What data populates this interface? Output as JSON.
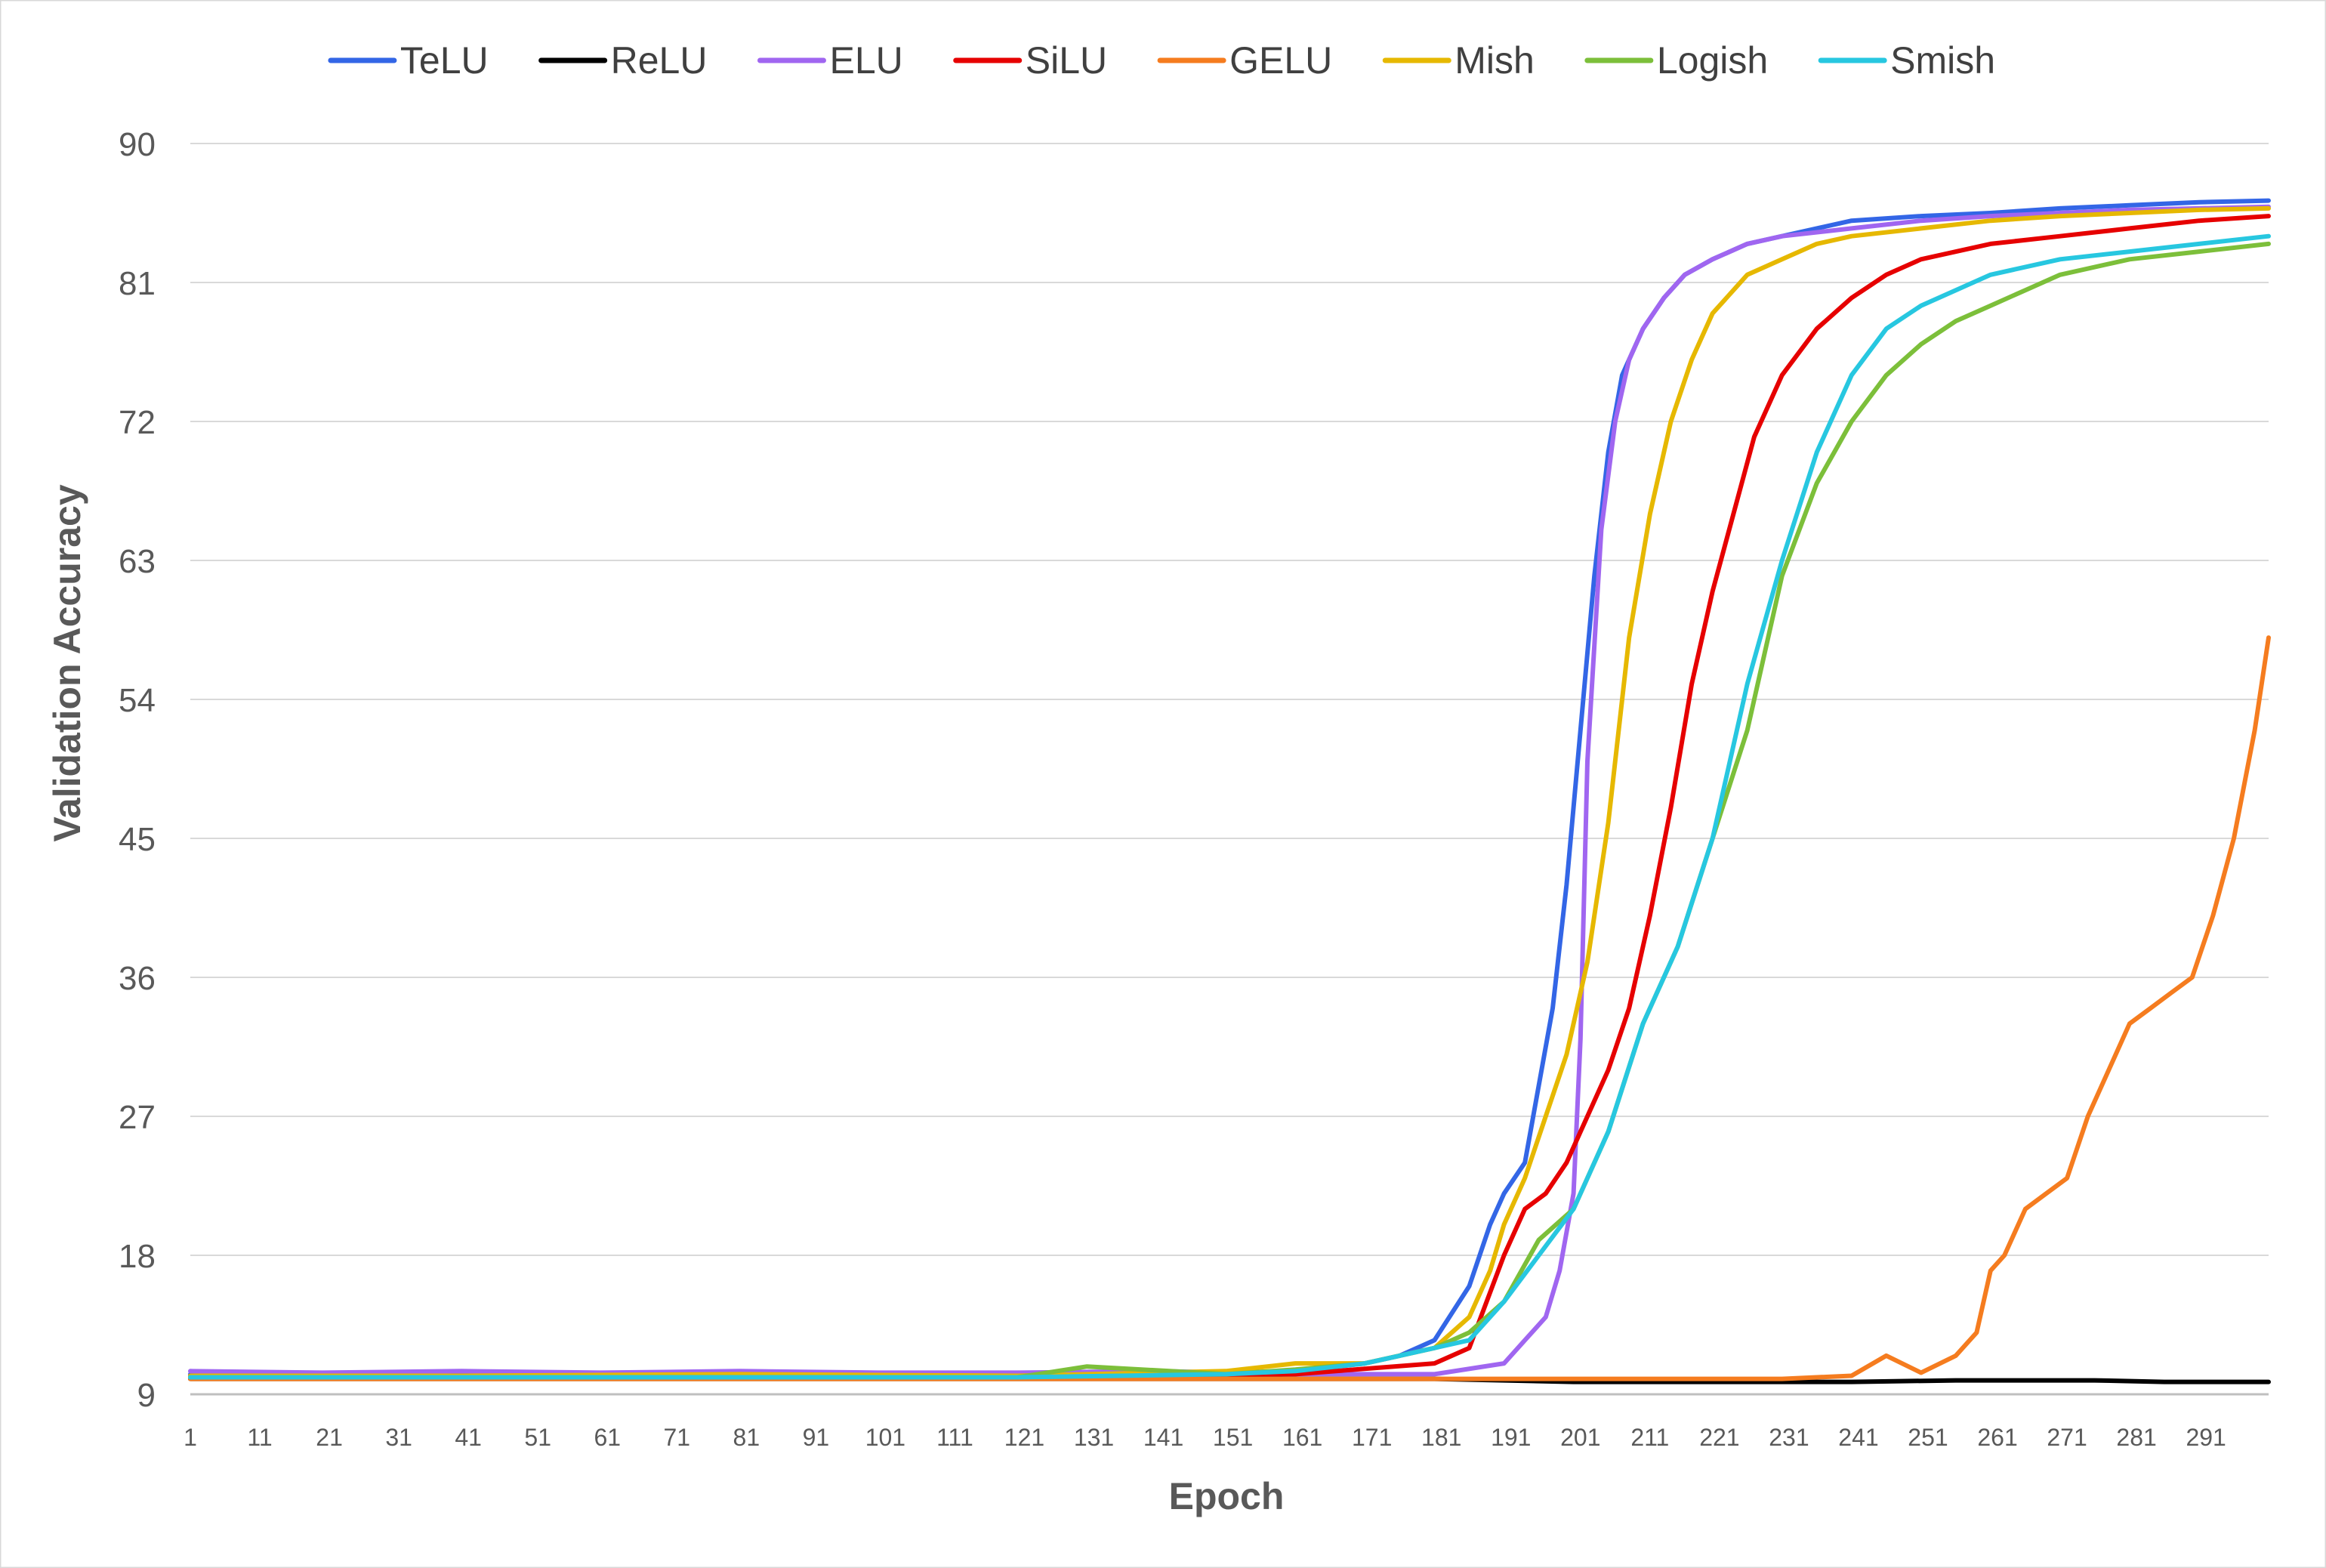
{
  "chart_data": {
    "type": "line",
    "xlabel": "Epoch",
    "ylabel": "Validation Accuracy",
    "xlim": [
      1,
      300
    ],
    "ylim": [
      9,
      90
    ],
    "y_ticks": [
      9,
      18,
      27,
      36,
      45,
      54,
      63,
      72,
      81,
      90
    ],
    "x_ticks": [
      "1",
      "11",
      "21",
      "31",
      "41",
      "51",
      "61",
      "71",
      "81",
      "91",
      "101",
      "111",
      "121",
      "131",
      "141",
      "151",
      "161",
      "171",
      "181",
      "191",
      "201",
      "211",
      "221",
      "231",
      "241",
      "251",
      "261",
      "271",
      "281",
      "291"
    ],
    "grid": "horizontal",
    "legend_position": "top",
    "series": [
      {
        "name": "TeLU",
        "color": "#3366e6",
        "x": [
          1,
          20,
          40,
          60,
          80,
          100,
          120,
          140,
          160,
          170,
          175,
          180,
          185,
          188,
          190,
          193,
          195,
          197,
          199,
          201,
          203,
          205,
          207,
          210,
          213,
          216,
          220,
          225,
          230,
          235,
          240,
          250,
          260,
          270,
          280,
          290,
          300
        ],
        "y": [
          10.3,
          10.2,
          10.3,
          10.2,
          10.2,
          10.3,
          10.2,
          10.3,
          10.5,
          11,
          11.5,
          12.5,
          16,
          20,
          22,
          24,
          29,
          34,
          42,
          52,
          62,
          70,
          75,
          78,
          80,
          81.5,
          82.5,
          83.5,
          84,
          84.5,
          85,
          85.3,
          85.5,
          85.8,
          86,
          86.2,
          86.3
        ]
      },
      {
        "name": "ReLU",
        "color": "#000000",
        "x": [
          1,
          50,
          100,
          150,
          180,
          200,
          220,
          240,
          255,
          265,
          275,
          285,
          295,
          300
        ],
        "y": [
          10,
          10,
          10,
          10,
          10,
          9.8,
          9.8,
          9.8,
          9.9,
          9.9,
          9.9,
          9.8,
          9.8,
          9.8
        ]
      },
      {
        "name": "ELU",
        "color": "#a066f0",
        "x": [
          1,
          20,
          40,
          60,
          80,
          100,
          120,
          140,
          160,
          180,
          190,
          193,
          196,
          198,
          200,
          201,
          202,
          204,
          206,
          208,
          210,
          213,
          216,
          220,
          225,
          230,
          240,
          250,
          260,
          270,
          280,
          290,
          300
        ],
        "y": [
          10.5,
          10.4,
          10.5,
          10.4,
          10.5,
          10.4,
          10.4,
          10.5,
          10.3,
          10.3,
          11,
          12.5,
          14,
          17,
          22,
          32,
          50,
          65,
          72,
          76,
          78,
          80,
          81.5,
          82.5,
          83.5,
          84,
          84.5,
          85,
          85.3,
          85.5,
          85.7,
          85.8,
          85.9
        ]
      },
      {
        "name": "SiLU",
        "color": "#e60000",
        "x": [
          1,
          40,
          80,
          120,
          160,
          180,
          185,
          190,
          193,
          196,
          199,
          202,
          205,
          208,
          211,
          214,
          217,
          220,
          223,
          226,
          230,
          235,
          240,
          245,
          250,
          260,
          270,
          280,
          290,
          300
        ],
        "y": [
          10.2,
          10.2,
          10.2,
          10.2,
          10.3,
          11,
          12,
          18,
          21,
          22,
          24,
          27,
          30,
          34,
          40,
          47,
          55,
          61,
          66,
          71,
          75,
          78,
          80,
          81.5,
          82.5,
          83.5,
          84,
          84.5,
          85,
          85.3
        ]
      },
      {
        "name": "GELU",
        "color": "#f57c1f",
        "x": [
          1,
          50,
          100,
          150,
          200,
          230,
          240,
          245,
          250,
          255,
          258,
          260,
          262,
          265,
          268,
          271,
          274,
          277,
          280,
          283,
          286,
          289,
          292,
          295,
          298,
          300
        ],
        "y": [
          10,
          10,
          10,
          10,
          10,
          10,
          10.2,
          11.5,
          10.4,
          11.5,
          13,
          17,
          18,
          21,
          22,
          23,
          27,
          30,
          33,
          34,
          35,
          36,
          40,
          45,
          52,
          58
        ]
      },
      {
        "name": "Mish",
        "color": "#e6b800",
        "x": [
          1,
          40,
          80,
          120,
          150,
          160,
          170,
          180,
          185,
          188,
          190,
          193,
          196,
          199,
          202,
          205,
          208,
          211,
          214,
          217,
          220,
          225,
          230,
          235,
          240,
          250,
          260,
          270,
          280,
          290,
          300
        ],
        "y": [
          10.2,
          10.2,
          10.3,
          10.2,
          10.5,
          11,
          11,
          12,
          14,
          17,
          20,
          23,
          27,
          31,
          37,
          46,
          58,
          66,
          72,
          76,
          79,
          81.5,
          82.5,
          83.5,
          84,
          84.5,
          85,
          85.3,
          85.5,
          85.7,
          85.8
        ]
      },
      {
        "name": "Logish",
        "color": "#7cbf3a",
        "x": [
          1,
          40,
          80,
          120,
          130,
          150,
          160,
          170,
          180,
          185,
          190,
          195,
          200,
          205,
          210,
          215,
          220,
          225,
          230,
          235,
          240,
          245,
          250,
          255,
          260,
          270,
          280,
          290,
          300
        ],
        "y": [
          10.1,
          10.1,
          10.1,
          10.1,
          10.8,
          10.3,
          10.6,
          11,
          12,
          13,
          15,
          19,
          21,
          26,
          33,
          38,
          45,
          52,
          62,
          68,
          72,
          75,
          77,
          78.5,
          79.5,
          81.5,
          82.5,
          83,
          83.5
        ]
      },
      {
        "name": "Smish",
        "color": "#27c7e0",
        "x": [
          1,
          40,
          80,
          120,
          150,
          160,
          170,
          175,
          180,
          185,
          190,
          195,
          200,
          205,
          210,
          215,
          220,
          225,
          230,
          235,
          240,
          245,
          250,
          255,
          260,
          270,
          280,
          290,
          300
        ],
        "y": [
          10.1,
          10.1,
          10.1,
          10.1,
          10.3,
          10.5,
          11,
          11.5,
          12,
          12.5,
          15,
          18,
          21,
          26,
          33,
          38,
          45,
          55,
          63,
          70,
          75,
          78,
          79.5,
          80.5,
          81.5,
          82.5,
          83,
          83.5,
          84
        ]
      }
    ]
  }
}
